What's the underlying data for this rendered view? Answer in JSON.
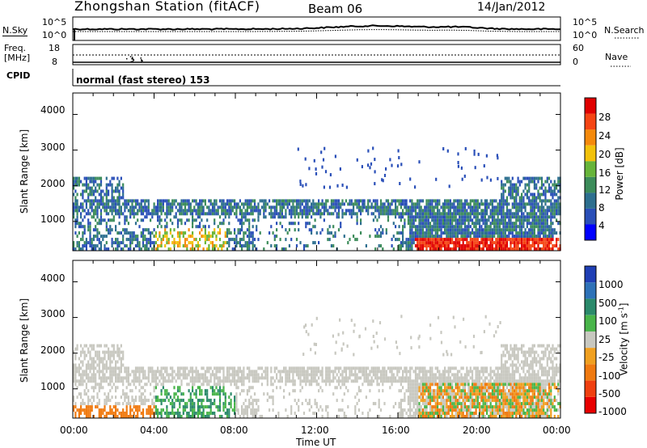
{
  "header": {
    "title": "Zhongshan Station (fitACF)",
    "beam": "Beam 06",
    "date": "14/Jan/2012"
  },
  "strip_noise": {
    "left_label": "N.Sky",
    "right_label": "N.Search",
    "left_ticks": [
      "10^5",
      "10^0"
    ],
    "right_ticks": [
      "10^5",
      "10^0"
    ]
  },
  "strip_freq": {
    "left_label_top": "Freq.",
    "left_label_bottom": "[MHz]",
    "left_ticks": [
      "18",
      "8"
    ],
    "right_label": "Nave",
    "right_ticks": [
      "60",
      "0"
    ]
  },
  "strip_cpid": {
    "label": "CPID",
    "text": "normal (fast stereo) 153"
  },
  "chart_data": [
    {
      "type": "heatmap",
      "title": "",
      "ylabel": "Slant Range [km]",
      "xlabel": "",
      "yticks": [
        "1000",
        "2000",
        "3000",
        "4000"
      ],
      "ylim": [
        180,
        4600
      ],
      "xlim": [
        0,
        24
      ],
      "colorbar": {
        "label": "Power [dB]",
        "ticks": [
          "4",
          "8",
          "12",
          "16",
          "20",
          "24",
          "28"
        ],
        "colors": [
          "#0000ff",
          "#2a4fb8",
          "#2d6f8f",
          "#3c8c5a",
          "#67b53a",
          "#f2c20b",
          "#f58a0c",
          "#f54514",
          "#e00000"
        ]
      }
    },
    {
      "type": "heatmap",
      "title": "",
      "ylabel": "Slant Range [km]",
      "xlabel": "Time UT",
      "yticks": [
        "1000",
        "2000",
        "3000",
        "4000"
      ],
      "xticks": [
        "00:00",
        "04:00",
        "08:00",
        "12:00",
        "16:00",
        "20:00",
        "00:00"
      ],
      "ylim": [
        180,
        4600
      ],
      "xlim": [
        0,
        24
      ],
      "colorbar": {
        "label": "Velocity [m s^-1]",
        "ticks": [
          "1000",
          "500",
          "100",
          "25",
          "-25",
          "-100",
          "-500",
          "-1000"
        ],
        "colors": [
          "#1f3fb5",
          "#2e72b8",
          "#2b8a6b",
          "#49b54a",
          "#c8c8c0",
          "#f0a020",
          "#f07a10",
          "#f04010",
          "#e80000"
        ]
      }
    }
  ]
}
